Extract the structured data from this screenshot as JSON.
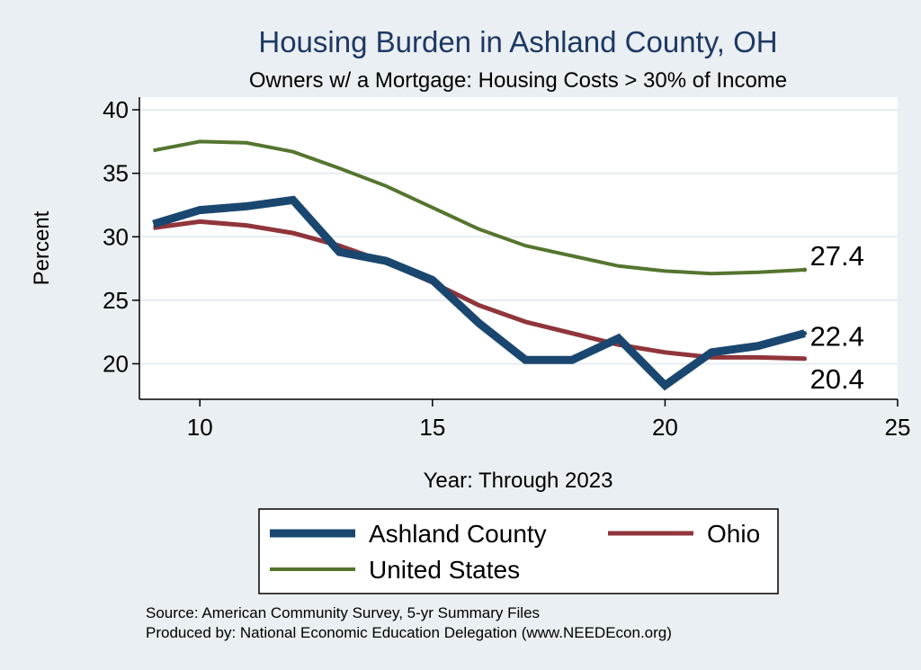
{
  "chart_data": {
    "type": "line",
    "title": "Housing Burden in Ashland County, OH",
    "subtitle": "Owners w/ a Mortgage: Housing Costs > 30% of Income",
    "xlabel": "Year: Through 2023",
    "ylabel": "Percent",
    "xlim": [
      8.7,
      25
    ],
    "ylim": [
      17.2,
      41
    ],
    "xticks": [
      10,
      15,
      20,
      25
    ],
    "yticks": [
      20,
      25,
      30,
      35,
      40
    ],
    "grid": true,
    "legend_position": "bottom",
    "series": [
      {
        "name": "Ashland County",
        "color": "#1a476f",
        "x": [
          9,
          10,
          11,
          12,
          13,
          14,
          15,
          16,
          17,
          18,
          19,
          20,
          21,
          22,
          23
        ],
        "y": [
          31.0,
          32.1,
          32.4,
          32.9,
          28.8,
          28.1,
          26.6,
          23.2,
          20.3,
          20.3,
          22.0,
          18.3,
          20.9,
          21.4,
          22.4
        ],
        "end_label": "22.4"
      },
      {
        "name": "Ohio",
        "color": "#90353b",
        "x": [
          9,
          10,
          11,
          12,
          13,
          14,
          15,
          16,
          17,
          18,
          19,
          20,
          21,
          22,
          23
        ],
        "y": [
          30.7,
          31.2,
          30.9,
          30.3,
          29.3,
          28.0,
          26.4,
          24.6,
          23.3,
          22.4,
          21.5,
          20.9,
          20.5,
          20.5,
          20.4
        ],
        "end_label": "20.4"
      },
      {
        "name": "United States",
        "color": "#55752f",
        "x": [
          9,
          10,
          11,
          12,
          13,
          14,
          15,
          16,
          17,
          18,
          19,
          20,
          21,
          22,
          23
        ],
        "y": [
          36.8,
          37.5,
          37.4,
          36.7,
          35.4,
          34.0,
          32.3,
          30.6,
          29.3,
          28.5,
          27.7,
          27.3,
          27.1,
          27.2,
          27.4
        ],
        "end_label": "27.4"
      }
    ]
  },
  "source_text": "Source: American Community Survey, 5-yr Summary Files",
  "produced_text": "Produced by: National Economic Education Delegation (www.NEEDEcon.org)"
}
